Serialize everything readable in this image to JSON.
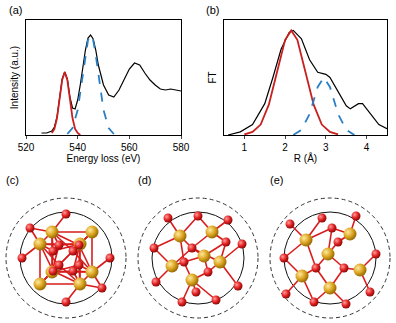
{
  "chart_data": [
    {
      "type": "line",
      "label": "(a)",
      "xlabel": "Energy loss (eV)",
      "ylabel": "Intensity (a.u.)",
      "xlim": [
        520,
        580
      ],
      "xticks": [
        520,
        540,
        560,
        580
      ],
      "ylim": [
        0,
        1.15
      ],
      "tick_labels": "x",
      "series": [
        {
          "color": "#000000",
          "line_style": "solid",
          "x": [
            526,
            528,
            530,
            531,
            532,
            533,
            534,
            535,
            536,
            537,
            538,
            539,
            540,
            541,
            542,
            543,
            544,
            545,
            546,
            547,
            548,
            550,
            552,
            554,
            556,
            558,
            560,
            562,
            564,
            566,
            568,
            570,
            572,
            574,
            576,
            578,
            580
          ],
          "values": [
            0.02,
            0.02,
            0.04,
            0.08,
            0.18,
            0.37,
            0.56,
            0.63,
            0.56,
            0.38,
            0.27,
            0.26,
            0.35,
            0.5,
            0.68,
            0.85,
            0.97,
            1.0,
            0.96,
            0.85,
            0.7,
            0.5,
            0.4,
            0.38,
            0.45,
            0.56,
            0.66,
            0.72,
            0.7,
            0.62,
            0.55,
            0.5,
            0.46,
            0.45,
            0.46,
            0.45,
            0.44
          ]
        },
        {
          "color": "#c8201e",
          "line_style": "solid",
          "x": [
            530,
            531,
            532,
            533,
            534,
            535,
            536,
            537,
            538,
            539,
            540,
            541
          ],
          "values": [
            0.02,
            0.06,
            0.17,
            0.36,
            0.55,
            0.63,
            0.55,
            0.36,
            0.17,
            0.06,
            0.02,
            0.0
          ]
        },
        {
          "color": "#2a7fc4",
          "line_style": "dash",
          "x": [
            536,
            538,
            540,
            542,
            543,
            544,
            545,
            546,
            547,
            548,
            550,
            552,
            554
          ],
          "values": [
            0.01,
            0.07,
            0.25,
            0.6,
            0.8,
            0.95,
            1.0,
            0.95,
            0.8,
            0.6,
            0.25,
            0.07,
            0.01
          ]
        }
      ]
    },
    {
      "type": "line",
      "label": "(b)",
      "xlabel": "R (Å)",
      "ylabel": "FT",
      "xlim": [
        0.5,
        4.5
      ],
      "xticks": [
        1,
        2,
        3,
        4
      ],
      "ylim": [
        0,
        1.1
      ],
      "tick_labels": "x",
      "series": [
        {
          "color": "#000000",
          "line_style": "solid",
          "x": [
            0.6,
            0.9,
            1.2,
            1.5,
            1.7,
            1.9,
            2.1,
            2.2,
            2.4,
            2.6,
            2.8,
            3.0,
            3.1,
            3.3,
            3.5,
            3.6,
            3.8,
            3.9,
            4.1,
            4.3,
            4.5
          ],
          "values": [
            0.0,
            0.03,
            0.1,
            0.3,
            0.55,
            0.82,
            0.98,
            1.0,
            0.92,
            0.72,
            0.6,
            0.58,
            0.55,
            0.42,
            0.28,
            0.25,
            0.3,
            0.3,
            0.2,
            0.1,
            0.06
          ]
        },
        {
          "color": "#c8201e",
          "line_style": "solid",
          "x": [
            1.0,
            1.2,
            1.4,
            1.6,
            1.8,
            2.0,
            2.15,
            2.3,
            2.5,
            2.7,
            2.9,
            3.1,
            3.3
          ],
          "values": [
            0.005,
            0.03,
            0.1,
            0.29,
            0.6,
            0.91,
            1.0,
            0.91,
            0.6,
            0.29,
            0.1,
            0.03,
            0.005
          ]
        },
        {
          "color": "#2a7fc4",
          "line_style": "dash",
          "x": [
            2.2,
            2.4,
            2.6,
            2.8,
            2.95,
            3.1,
            3.3,
            3.5,
            3.7
          ],
          "values": [
            0.0,
            0.05,
            0.2,
            0.46,
            0.55,
            0.46,
            0.2,
            0.05,
            0.0
          ]
        }
      ]
    }
  ],
  "diagrams": [
    {
      "label": "(c)"
    },
    {
      "label": "(d)"
    },
    {
      "label": "(e)"
    }
  ]
}
